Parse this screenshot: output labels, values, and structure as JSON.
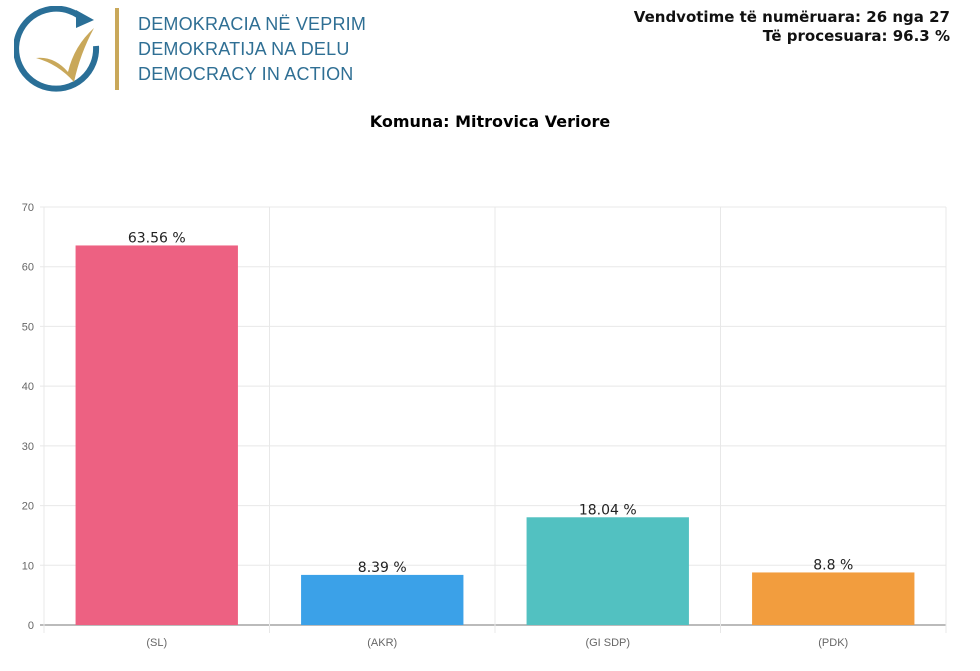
{
  "logo": {
    "lines": [
      "DEMOKRACIA NË VEPRIM",
      "DEMOKRATIJA NA DELU",
      "DEMOCRACY IN ACTION"
    ],
    "colors": {
      "text": "#2f6f94",
      "accent": "#c9a85a"
    }
  },
  "status": {
    "counted": "Vendvotime të numëruara: 26 nga 27",
    "processed": "Të procesuara: 96.3 %"
  },
  "chart_data": {
    "type": "bar",
    "title": "Komuna: Mitrovica Veriore",
    "categories": [
      "(SL)",
      "(AKR)",
      "(GI SDP)",
      "(PDK)"
    ],
    "values": [
      63.56,
      8.39,
      18.04,
      8.8
    ],
    "data_labels": [
      "63.56 %",
      "8.39 %",
      "18.04 %",
      "8.8 %"
    ],
    "colors": [
      "#ed6182",
      "#3ba1e8",
      "#52c1c1",
      "#f29d3e"
    ],
    "ylim": [
      0,
      70
    ],
    "yticks": [
      0,
      10,
      20,
      30,
      40,
      50,
      60,
      70
    ],
    "grid": true,
    "xlabel": "",
    "ylabel": ""
  }
}
